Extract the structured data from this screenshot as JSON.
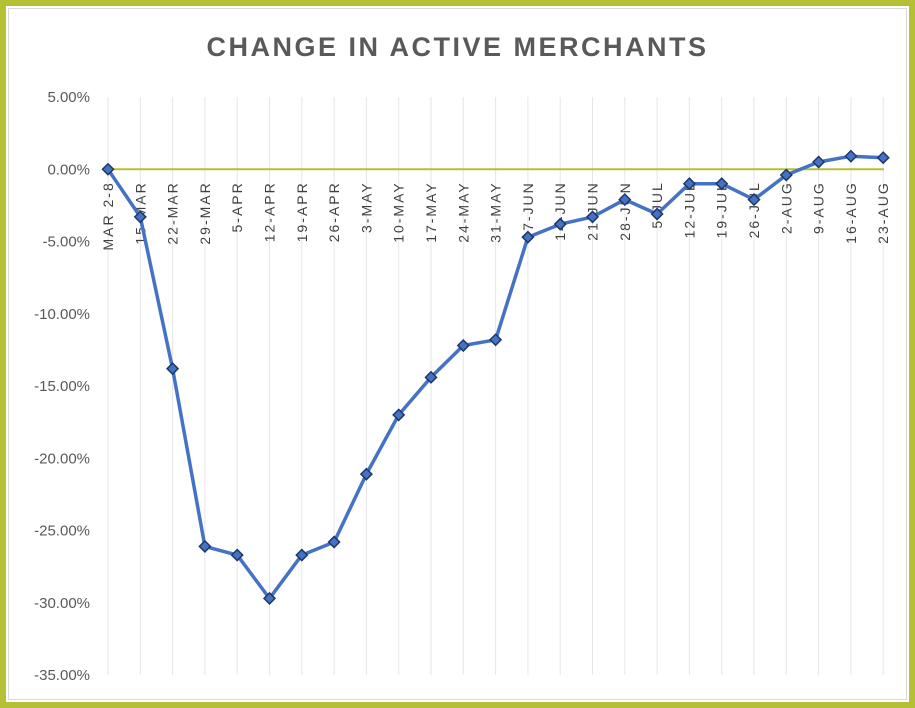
{
  "chart_data": {
    "type": "line",
    "title": "CHANGE IN ACTIVE MERCHANTS",
    "xlabel": "",
    "ylabel": "",
    "categories": [
      "MAR 2-8",
      "15-MAR",
      "22-MAR",
      "29-MAR",
      "5-APR",
      "12-APR",
      "19-APR",
      "26-APR",
      "3-MAY",
      "10-MAY",
      "17-MAY",
      "24-MAY",
      "31-MAY",
      "7-JUN",
      "14-JUN",
      "21-JUN",
      "28-JUN",
      "5-JUL",
      "12-JUL",
      "19-JUL",
      "26-JUL",
      "2-AUG",
      "9-AUG",
      "16-AUG",
      "23-AUG"
    ],
    "series": [
      {
        "values": [
          0.0,
          -3.3,
          -13.8,
          -26.1,
          -26.7,
          -29.7,
          -26.7,
          -25.8,
          -21.1,
          -17.0,
          -14.4,
          -12.2,
          -11.8,
          -4.7,
          -3.8,
          -3.3,
          -2.1,
          -3.1,
          -1.0,
          -1.0,
          -2.1,
          -0.4,
          0.5,
          0.9,
          0.8
        ]
      }
    ],
    "ylim": [
      -35,
      5
    ],
    "yticks": [
      "5.00%",
      "0.00%",
      "-5.00%",
      "-10.00%",
      "-15.00%",
      "-20.00%",
      "-25.00%",
      "-30.00%",
      "-35.00%"
    ],
    "ytick_values": [
      5,
      0,
      -5,
      -10,
      -15,
      -20,
      -25,
      -30,
      -35
    ],
    "grid": "vertical",
    "legend": "none",
    "colors": {
      "line": "#4472c4",
      "marker_fill": "#4472c4",
      "marker_stroke": "#1f3864",
      "zero_line": "#b5c034",
      "frame": "#b5c034",
      "grid": "#e6e6e6",
      "title": "#595959"
    }
  }
}
